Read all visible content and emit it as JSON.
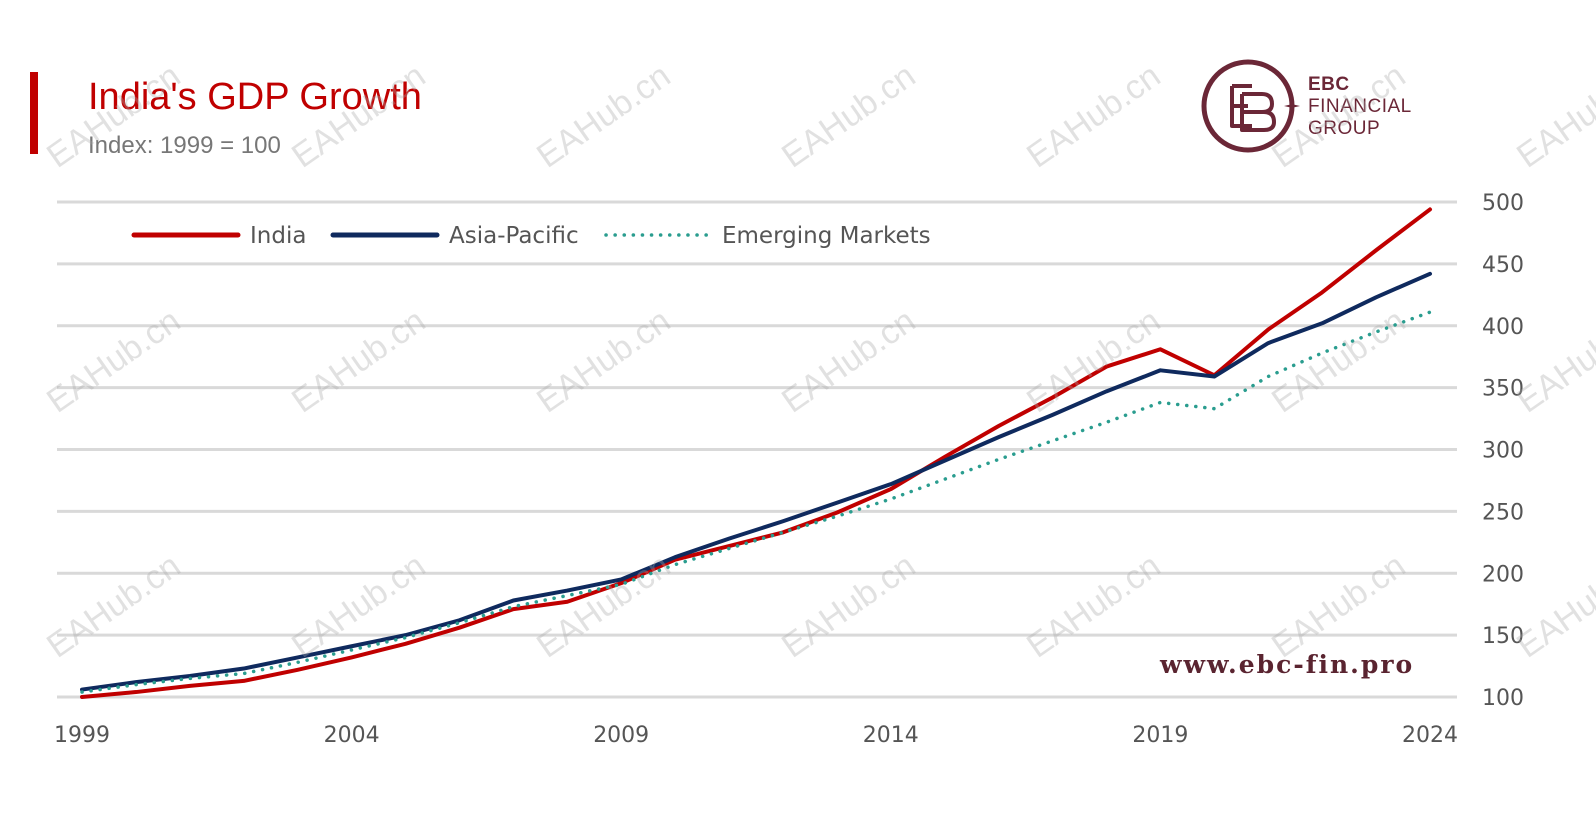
{
  "header": {
    "title": "India's GDP Growth",
    "subtitle": "Index: 1999 = 100"
  },
  "logo": {
    "line1": "EBC",
    "line2": "FINANCIAL",
    "line3": "GROUP",
    "color": "#6b2737"
  },
  "footer": {
    "url": "www.ebc-fin.pro"
  },
  "watermark": {
    "text": "EAHub.cn"
  },
  "colors": {
    "accent": "#c00000",
    "india": "#c00000",
    "asia_pacific": "#0f2a5e",
    "emerging_markets": "#2a9d8f",
    "grid": "#d9d9d9"
  },
  "chart_data": {
    "type": "line",
    "title": "India's GDP Growth",
    "subtitle": "Index: 1999 = 100",
    "xlabel": "",
    "ylabel": "",
    "x": [
      1999,
      2000,
      2001,
      2002,
      2003,
      2004,
      2005,
      2006,
      2007,
      2008,
      2009,
      2010,
      2011,
      2012,
      2013,
      2014,
      2015,
      2016,
      2017,
      2018,
      2019,
      2020,
      2021,
      2022,
      2023,
      2024
    ],
    "x_ticks": [
      "1999",
      "2004",
      "2009",
      "2014",
      "2019",
      "2024"
    ],
    "x_tick_values": [
      1999,
      2004,
      2009,
      2014,
      2019,
      2024
    ],
    "y_ticks": [
      "100",
      "150",
      "200",
      "250",
      "300",
      "350",
      "400",
      "450",
      "500"
    ],
    "y_tick_values": [
      100,
      150,
      200,
      250,
      300,
      350,
      400,
      450,
      500
    ],
    "ylim": [
      100,
      500
    ],
    "xlim": [
      1999,
      2024
    ],
    "y_axis_side": "right",
    "grid": true,
    "legend_position": "top-left",
    "series": [
      {
        "name": "India",
        "style": "solid",
        "values": [
          100,
          104,
          109,
          113,
          122,
          132,
          143,
          156,
          171,
          177,
          192,
          211,
          222,
          233,
          249,
          268,
          294,
          319,
          342,
          367,
          381,
          360,
          397,
          427,
          461,
          494
        ]
      },
      {
        "name": "Asia-Pacific",
        "style": "solid",
        "values": [
          106,
          112,
          117,
          123,
          132,
          141,
          150,
          162,
          178,
          186,
          195,
          213,
          228,
          242,
          257,
          272,
          291,
          310,
          328,
          347,
          364,
          359,
          386,
          402,
          423,
          442
        ]
      },
      {
        "name": "Emerging Markets",
        "style": "dotted",
        "values": [
          104,
          110,
          115,
          119,
          128,
          138,
          148,
          160,
          173,
          182,
          191,
          207,
          220,
          233,
          246,
          260,
          276,
          292,
          307,
          322,
          338,
          333,
          359,
          378,
          395,
          411
        ]
      }
    ]
  }
}
